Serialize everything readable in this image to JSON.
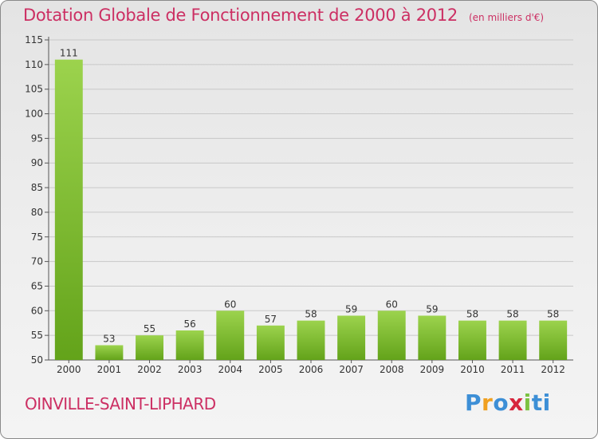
{
  "header": {
    "title": "Dotation Globale de Fonctionnement de 2000 à 2012",
    "unit": "(en milliers d'€)"
  },
  "footer": {
    "commune": "OINVILLE-SAINT-LIPHARD",
    "logo_letters": [
      "P",
      "r",
      "o",
      "x",
      "i",
      "ti"
    ]
  },
  "colors": {
    "title": "#cc2f63",
    "bar_light": "#9cd34d",
    "bar_dark": "#63a31a",
    "grid": "#c8c8c8"
  },
  "chart_data": {
    "type": "bar",
    "categories": [
      "2000",
      "2001",
      "2002",
      "2003",
      "2004",
      "2005",
      "2006",
      "2007",
      "2008",
      "2009",
      "2010",
      "2011",
      "2012"
    ],
    "values": [
      111,
      53,
      55,
      56,
      60,
      57,
      58,
      59,
      60,
      59,
      58,
      58,
      58
    ],
    "ylim": [
      50,
      115
    ],
    "yticks": [
      50,
      55,
      60,
      65,
      70,
      75,
      80,
      85,
      90,
      95,
      100,
      105,
      110,
      115
    ],
    "grid": true,
    "xlabel": "",
    "ylabel": ""
  }
}
